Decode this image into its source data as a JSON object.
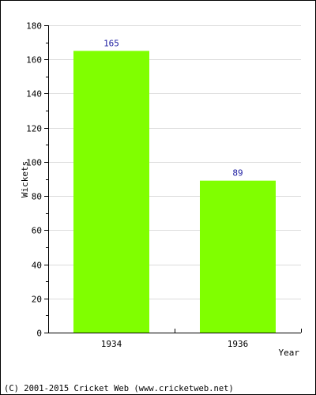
{
  "chart_data": {
    "type": "bar",
    "categories": [
      "1934",
      "1936"
    ],
    "values": [
      165,
      89
    ],
    "data_labels": [
      "165",
      "89"
    ],
    "title": "",
    "xlabel": "Year",
    "ylabel": "Wickets",
    "ylim": [
      0,
      180
    ],
    "yticks": [
      0,
      20,
      40,
      60,
      80,
      100,
      120,
      140,
      160,
      180
    ],
    "grid": true,
    "bar_color": "#80ff00",
    "label_color": "#1a1aa0"
  },
  "footer": {
    "copyright": "(C) 2001-2015 Cricket Web (www.cricketweb.net)"
  }
}
